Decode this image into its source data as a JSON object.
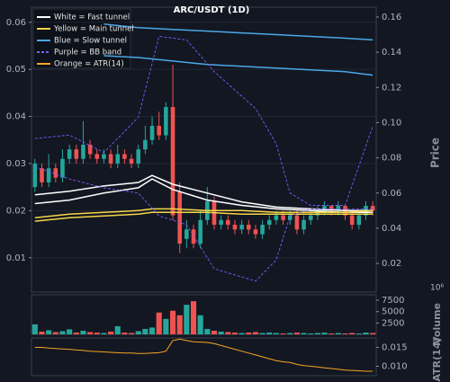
{
  "chart_data": [
    {
      "type": "candlestick",
      "title": "ARC/USDT (1D)",
      "y2_label": "Price",
      "open": [
        0.025,
        0.029,
        0.026,
        0.029,
        0.027,
        0.031,
        0.033,
        0.031,
        0.034,
        0.032,
        0.031,
        0.032,
        0.03,
        0.032,
        0.031,
        0.03,
        0.033,
        0.035,
        0.038,
        0.036,
        0.042,
        0.024,
        0.014,
        0.016,
        0.013,
        0.018,
        0.022,
        0.017,
        0.018,
        0.017,
        0.016,
        0.017,
        0.016,
        0.015,
        0.017,
        0.018,
        0.019,
        0.018,
        0.019,
        0.016,
        0.018,
        0.019,
        0.02,
        0.021,
        0.02,
        0.021,
        0.019,
        0.017,
        0.019,
        0.021
      ],
      "high": [
        0.031,
        0.03,
        0.032,
        0.03,
        0.033,
        0.034,
        0.034,
        0.039,
        0.035,
        0.033,
        0.033,
        0.033,
        0.034,
        0.033,
        0.032,
        0.034,
        0.038,
        0.04,
        0.041,
        0.043,
        0.051,
        0.026,
        0.018,
        0.017,
        0.02,
        0.025,
        0.023,
        0.019,
        0.019,
        0.018,
        0.018,
        0.018,
        0.017,
        0.018,
        0.019,
        0.02,
        0.02,
        0.02,
        0.02,
        0.019,
        0.02,
        0.021,
        0.022,
        0.021,
        0.022,
        0.021,
        0.02,
        0.02,
        0.022,
        0.022
      ],
      "low": [
        0.024,
        0.025,
        0.025,
        0.026,
        0.026,
        0.03,
        0.03,
        0.03,
        0.031,
        0.03,
        0.03,
        0.029,
        0.029,
        0.03,
        0.029,
        0.029,
        0.032,
        0.034,
        0.035,
        0.035,
        0.018,
        0.011,
        0.012,
        0.012,
        0.012,
        0.017,
        0.016,
        0.016,
        0.016,
        0.015,
        0.015,
        0.015,
        0.014,
        0.014,
        0.016,
        0.017,
        0.017,
        0.017,
        0.015,
        0.015,
        0.017,
        0.018,
        0.019,
        0.019,
        0.019,
        0.018,
        0.016,
        0.016,
        0.018,
        0.019
      ],
      "close": [
        0.03,
        0.026,
        0.029,
        0.027,
        0.031,
        0.033,
        0.031,
        0.034,
        0.032,
        0.031,
        0.032,
        0.03,
        0.032,
        0.031,
        0.03,
        0.033,
        0.035,
        0.038,
        0.036,
        0.042,
        0.019,
        0.013,
        0.016,
        0.013,
        0.018,
        0.022,
        0.017,
        0.018,
        0.017,
        0.016,
        0.017,
        0.016,
        0.015,
        0.017,
        0.018,
        0.019,
        0.018,
        0.019,
        0.016,
        0.018,
        0.019,
        0.02,
        0.021,
        0.02,
        0.021,
        0.019,
        0.017,
        0.019,
        0.021,
        0.02
      ],
      "up_color": "#26a69a",
      "down_color": "#ef5350",
      "xlim": [
        -0.5,
        49.5
      ],
      "ylim": [
        0.0027,
        0.0632
      ],
      "yticks": [
        0.01,
        0.02,
        0.03,
        0.04,
        0.05,
        0.06
      ],
      "y2lim": [
        0.0037,
        0.1656
      ],
      "y2ticks": [
        0.02,
        0.04,
        0.06,
        0.08,
        {
          "value": 0.1,
          "label": "0.10"
        },
        0.12,
        0.14,
        0.16
      ],
      "grid": true,
      "legend": "upper left",
      "series": [
        {
          "name": "White = Fast tunnel",
          "color": "#ffffff",
          "axis": "y2",
          "x": [
            0,
            5,
            10,
            15,
            17,
            20,
            25,
            30,
            35,
            40,
            45,
            49
          ],
          "upper": [
            0.059,
            0.061,
            0.064,
            0.066,
            0.07,
            0.065,
            0.06,
            0.055,
            0.052,
            0.051,
            0.05,
            0.05
          ],
          "lower": [
            0.054,
            0.056,
            0.06,
            0.063,
            0.068,
            0.062,
            0.056,
            0.053,
            0.051,
            0.05,
            0.049,
            0.049
          ]
        },
        {
          "name": "Yellow = Main tunnel",
          "color": "#f5d547",
          "axis": "y2",
          "x": [
            0,
            5,
            10,
            15,
            17,
            20,
            25,
            30,
            35,
            40,
            45,
            49
          ],
          "upper": [
            0.046,
            0.048,
            0.049,
            0.05,
            0.051,
            0.051,
            0.05,
            0.05,
            0.049,
            0.049,
            0.049,
            0.05
          ],
          "lower": [
            0.044,
            0.046,
            0.047,
            0.048,
            0.049,
            0.049,
            0.049,
            0.048,
            0.048,
            0.048,
            0.048,
            0.048
          ]
        },
        {
          "name": "Blue = Slow tunnel",
          "color": "#4aa8e8",
          "axis": "y2",
          "x": [
            10,
            15,
            20,
            25,
            30,
            35,
            40,
            45,
            49
          ],
          "upper": [
            0.156,
            0.154,
            0.153,
            0.152,
            0.151,
            0.15,
            0.149,
            0.148,
            0.147
          ],
          "lower": [
            0.138,
            0.137,
            0.135,
            0.133,
            0.132,
            0.131,
            0.13,
            0.129,
            0.127
          ]
        },
        {
          "name": "Purple = BB band",
          "color": "#7b5cff",
          "axis": "y2",
          "dashed": true,
          "x": [
            0,
            5,
            10,
            15,
            18,
            22,
            26,
            32,
            35,
            37,
            40,
            45,
            49
          ],
          "upper": [
            0.091,
            0.093,
            0.083,
            0.103,
            0.149,
            0.147,
            0.129,
            0.108,
            0.088,
            0.06,
            0.053,
            0.053,
            0.098
          ],
          "lower": [
            0.075,
            0.068,
            0.063,
            0.06,
            0.047,
            0.042,
            0.017,
            0.01,
            0.022,
            0.047,
            0.051,
            0.051,
            0.051
          ]
        }
      ]
    },
    {
      "type": "bar",
      "y_label": "Volume",
      "y_offset_label": "10⁶",
      "values": [
        2200,
        600,
        900,
        500,
        700,
        1100,
        400,
        800,
        500,
        400,
        300,
        600,
        1800,
        400,
        300,
        700,
        1200,
        1500,
        4800,
        3400,
        5200,
        4200,
        6500,
        7300,
        4200,
        1200,
        800,
        600,
        500,
        400,
        300,
        400,
        500,
        300,
        400,
        300,
        200,
        300,
        400,
        300,
        200,
        300,
        400,
        200,
        300,
        200,
        300,
        200,
        400,
        300
      ],
      "ylim": [
        0,
        8700
      ],
      "yticks": [
        2500,
        5000,
        7500
      ]
    },
    {
      "type": "line",
      "y_label": "ATR(14)",
      "series": [
        {
          "name": "Orange = ATR(14)",
          "color": "#f5a623",
          "values": [
            0.015,
            0.015,
            0.0148,
            0.0147,
            0.0146,
            0.0145,
            0.0143,
            0.0142,
            0.014,
            0.0139,
            0.0138,
            0.0137,
            0.0136,
            0.0135,
            0.0135,
            0.0134,
            0.0134,
            0.0135,
            0.0136,
            0.014,
            0.0168,
            0.0172,
            0.0168,
            0.0165,
            0.0164,
            0.0163,
            0.016,
            0.0155,
            0.015,
            0.0145,
            0.014,
            0.0135,
            0.013,
            0.0125,
            0.012,
            0.0115,
            0.0112,
            0.011,
            0.0105,
            0.0102,
            0.01,
            0.0098,
            0.0096,
            0.0094,
            0.0092,
            0.009,
            0.0089,
            0.0088,
            0.0087,
            0.0087
          ]
        }
      ],
      "ylim": [
        0.0075,
        0.0175
      ],
      "yticks": [
        {
          "value": 0.01,
          "label": "0.010"
        },
        0.015
      ]
    }
  ]
}
